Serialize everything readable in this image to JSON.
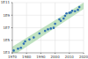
{
  "chart_data": {
    "type": "scatter",
    "log": "y",
    "grid": true,
    "marker": "circle",
    "color": "#2f6fb5",
    "xlim": [
      1970,
      2020
    ],
    "xticks": [
      1970,
      1980,
      1990,
      2000,
      2010,
      2020
    ],
    "ylim": [
      1000,
      100000000000
    ],
    "yticks": [
      {
        "value": 1000,
        "label": "1E3"
      },
      {
        "value": 100000,
        "label": "1E5"
      },
      {
        "value": 10000000,
        "label": "1E7"
      },
      {
        "value": 1000000000,
        "label": "1E9"
      },
      {
        "value": 100000000000,
        "label": "1E11"
      }
    ],
    "x": [
      1971,
      1974,
      1976,
      1978,
      1979,
      1982,
      1985,
      1989,
      1993,
      1995,
      1997,
      1999,
      2000,
      2003,
      2004,
      2006,
      2007,
      2008,
      2010,
      2011,
      2012,
      2014,
      2016,
      2017
    ],
    "values": [
      2300,
      4500,
      6500,
      29000,
      68000,
      134000,
      275000,
      1200000,
      3100000,
      5500000,
      7500000,
      9500000,
      42000000,
      220000000,
      125000000,
      291000000,
      800000000,
      1900000000,
      2300000000,
      2600000000,
      5000000000,
      4300000000,
      7200000000,
      19200000000
    ],
    "band": {
      "x": [
        1970,
        2020
      ],
      "lower": [
        300,
        10000000000
      ],
      "upper": [
        10000,
        100000000000
      ],
      "color": "#a5d6a7"
    }
  }
}
